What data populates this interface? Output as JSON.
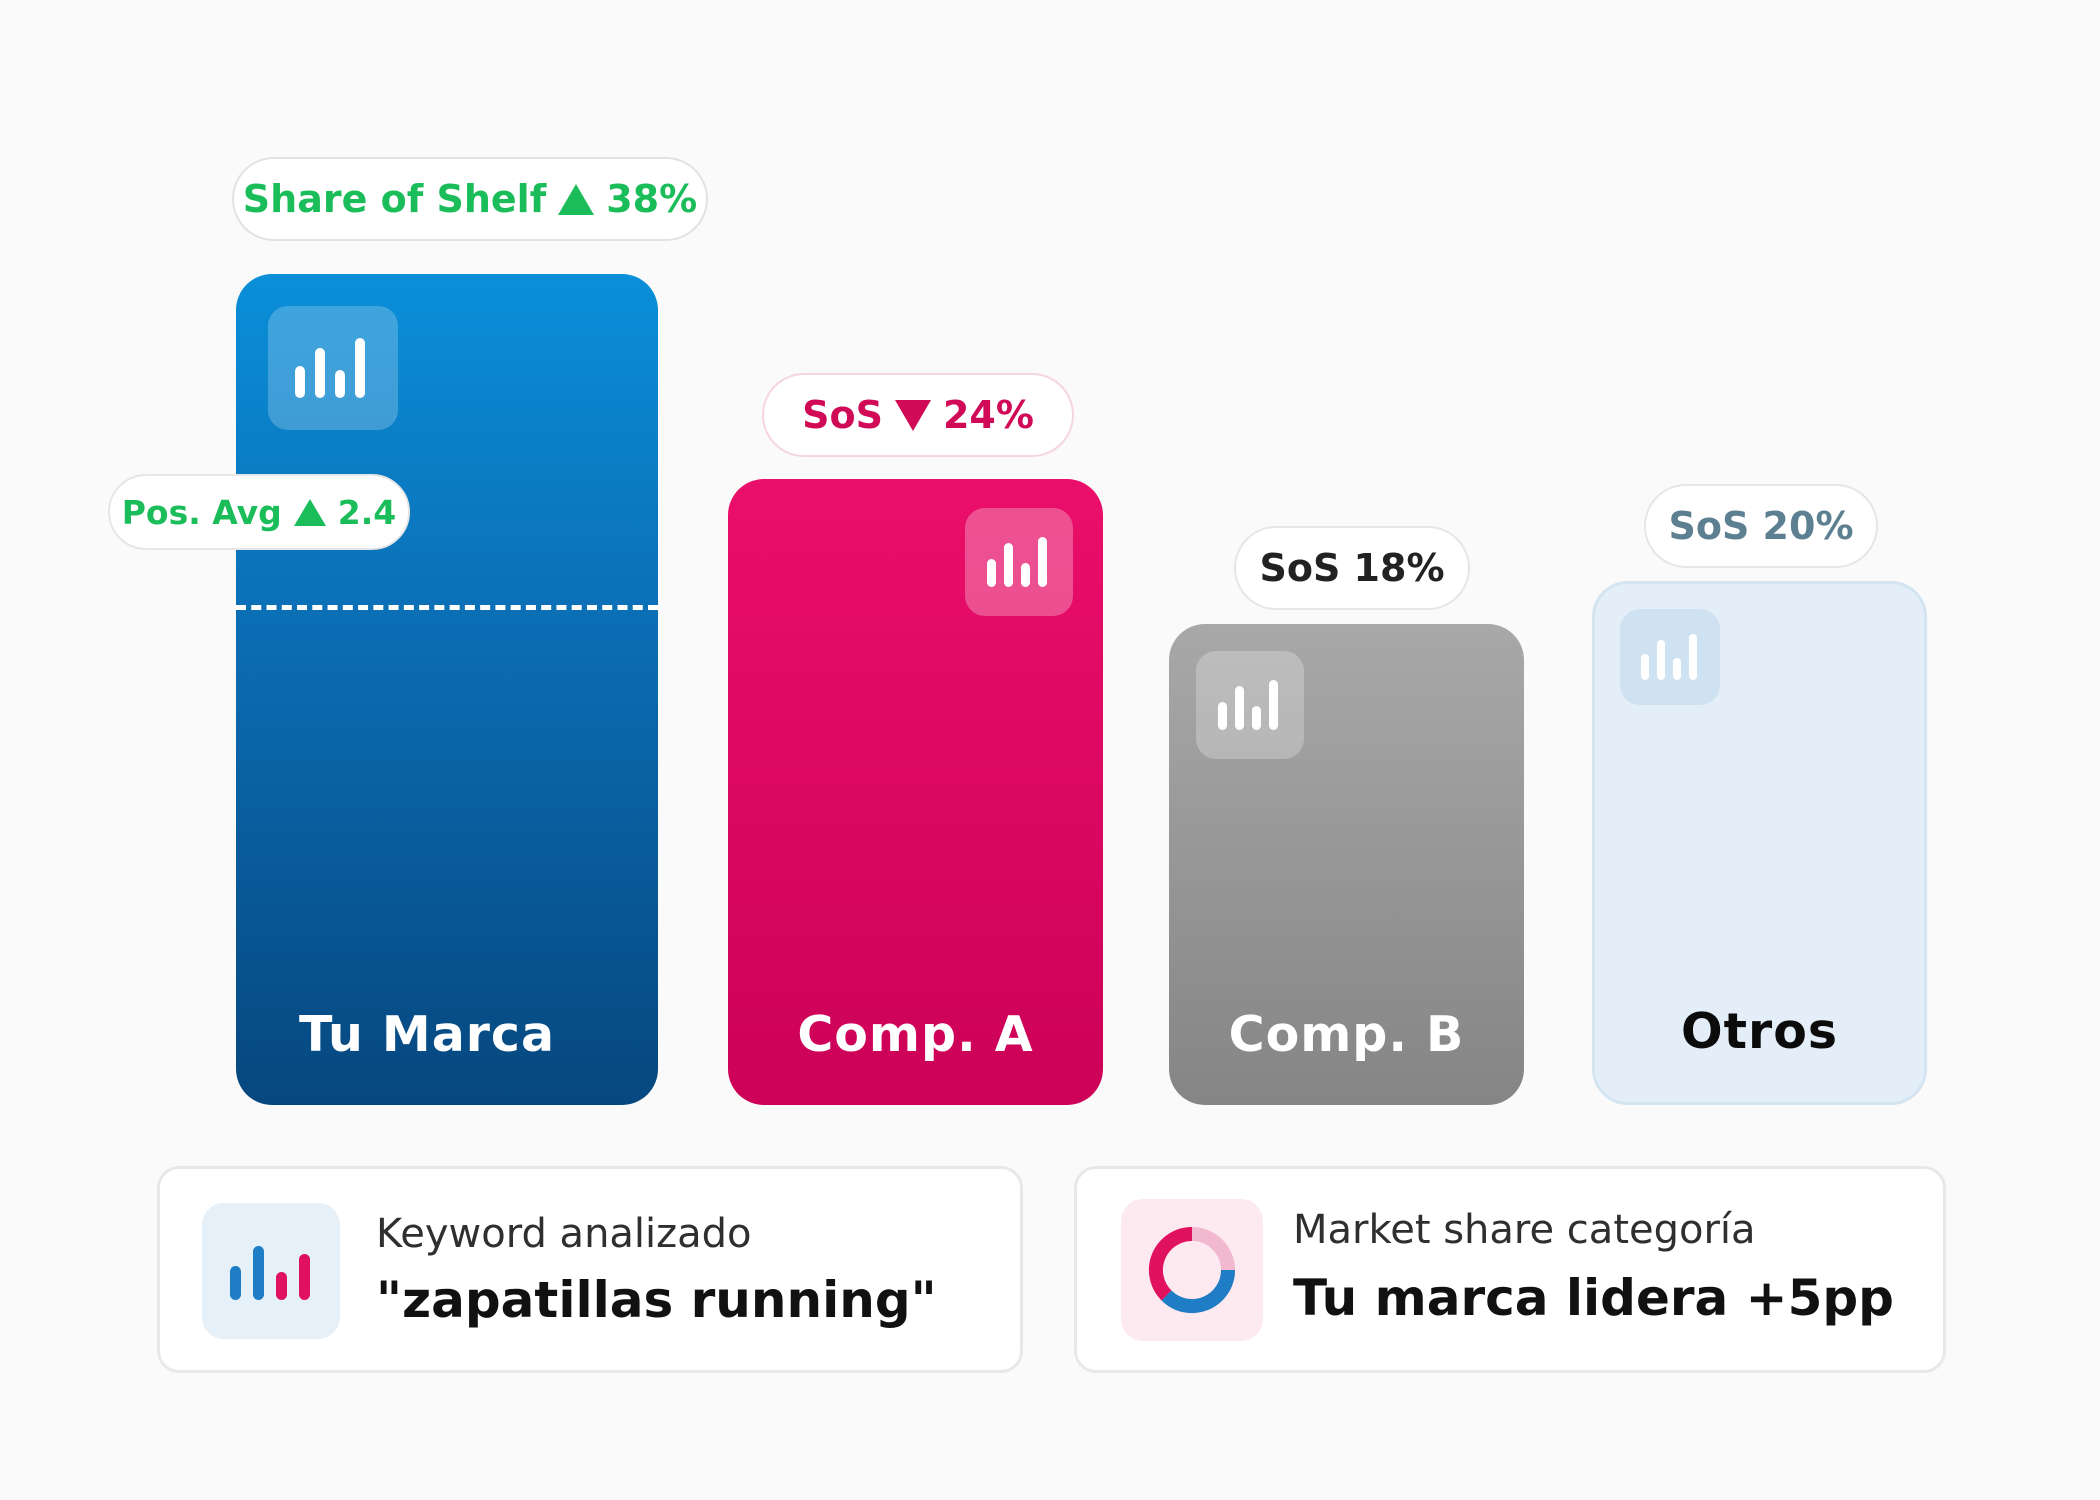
{
  "chart_data": {
    "type": "bar",
    "categories": [
      "Tu Marca",
      "Comp. A",
      "Comp. B",
      "Otros"
    ],
    "series": [
      {
        "name": "Share of Shelf",
        "values": [
          38,
          24,
          18,
          20
        ]
      }
    ],
    "value_unit": "%",
    "title": "",
    "xlabel": "",
    "ylabel": ""
  },
  "labels": {
    "brand_sos_prefix": "Share of Shelf",
    "brand_sos_value": "38%",
    "brand_pos_prefix": "Pos. Avg",
    "brand_pos_value": "2.4",
    "compa_sos_prefix": "SoS",
    "compa_sos_value": "24%",
    "compb_sos": "SoS 18%",
    "otros_sos": "SoS 20%"
  },
  "trends": {
    "brand_sos": "up",
    "brand_pos": "up",
    "compa_sos": "down"
  },
  "cards": {
    "keyword": {
      "label": "Keyword analizado",
      "value": "\"zapatillas running\""
    },
    "market": {
      "label": "Market share categoría",
      "value": "Tu marca lidera +5pp"
    }
  },
  "colors": {
    "brand": "#0b6cb2",
    "compa": "#dc0a62",
    "compb": "#969696",
    "otros": "#e3eef8",
    "positive": "#1bbd5a",
    "negative": "#d10a58"
  },
  "icons": {
    "bar_tile": "bar-chart-icon",
    "keyword_card": "bar-chart-icon",
    "market_card": "donut-chart-icon",
    "trend_up": "triangle-up-icon",
    "trend_down": "triangle-down-icon"
  }
}
